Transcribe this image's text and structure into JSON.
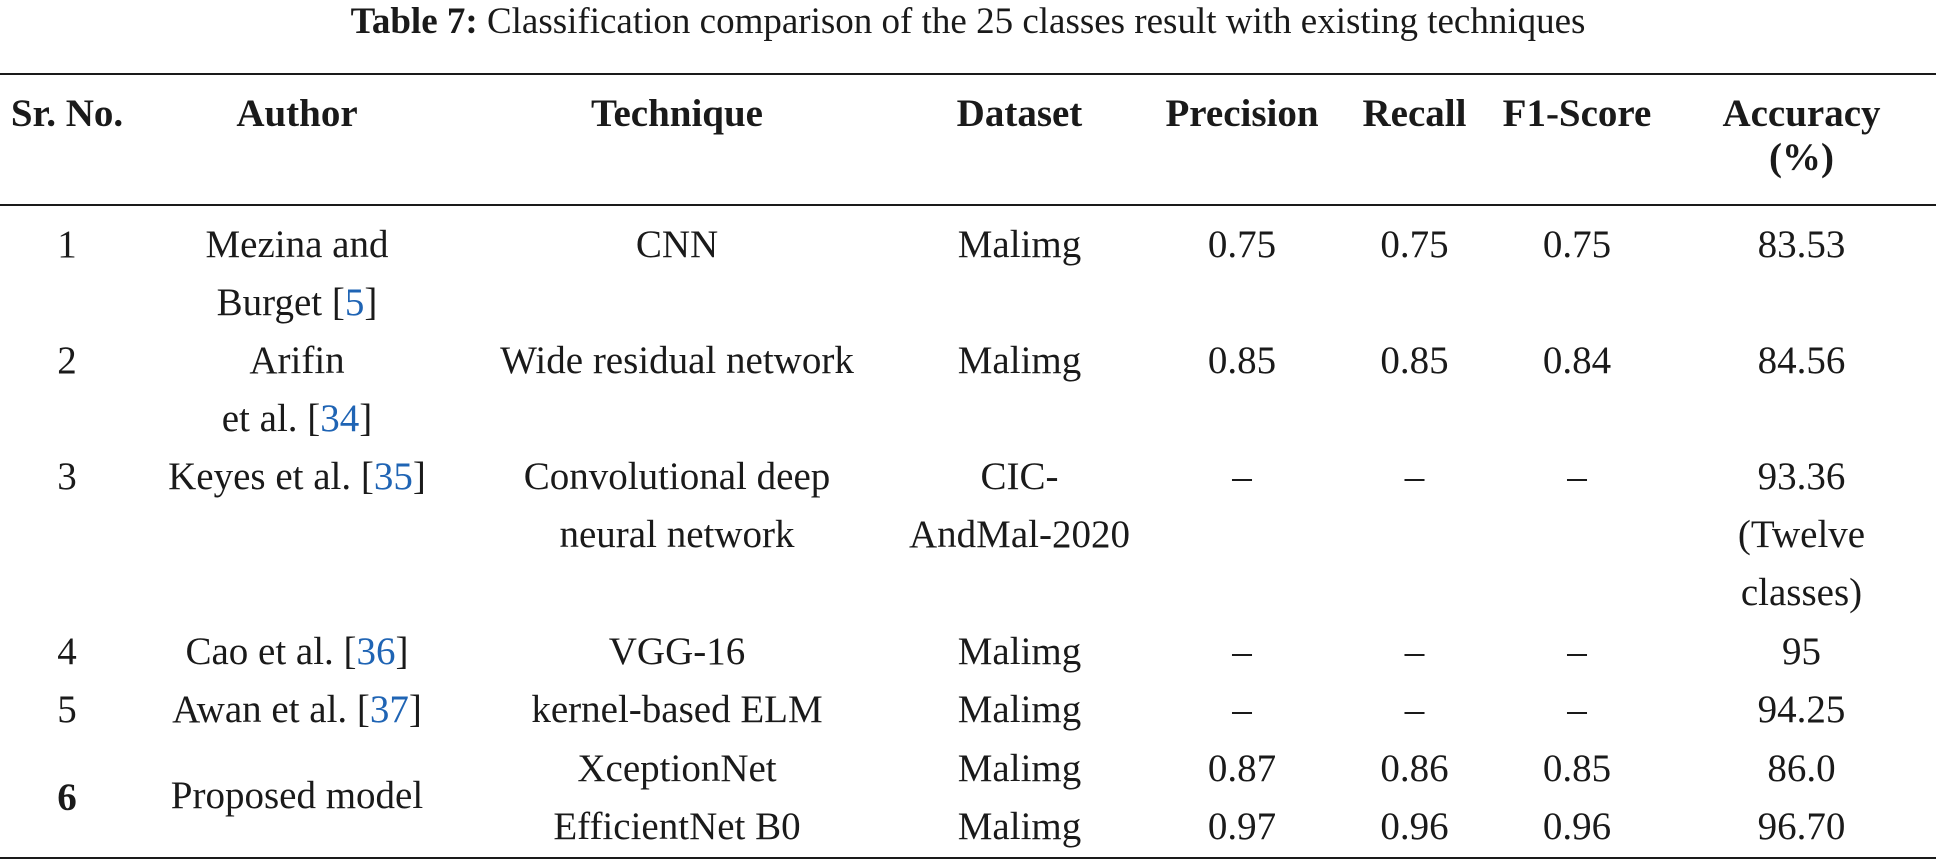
{
  "caption": {
    "label": "Table 7:",
    "text": "Classification comparison of the 25 classes result with existing techniques"
  },
  "headers": {
    "sr_no": "Sr. No.",
    "author": "Author",
    "technique": "Technique",
    "dataset": "Dataset",
    "precision": "Precision",
    "recall": "Recall",
    "f1": "F1-Score",
    "accuracy_1": "Accuracy",
    "accuracy_2": "(%)"
  },
  "rows": [
    {
      "sr": "1",
      "author_1": "Mezina and",
      "author_2_pre": "Burget [",
      "author_ref": "5",
      "author_2_post": "]",
      "technique": "CNN",
      "dataset": "Malimg",
      "precision": "0.75",
      "recall": "0.75",
      "f1": "0.75",
      "accuracy": "83.53"
    },
    {
      "sr": "2",
      "author_1": "Arifin",
      "author_2_pre": "et al. [",
      "author_ref": "34",
      "author_2_post": "]",
      "technique": "Wide residual network",
      "dataset": "Malimg",
      "precision": "0.85",
      "recall": "0.85",
      "f1": "0.84",
      "accuracy": "84.56"
    },
    {
      "sr": "3",
      "author_pre": "Keyes et al. [",
      "author_ref": "35",
      "author_post": "]",
      "technique_1": "Convolutional deep",
      "technique_2": "neural network",
      "dataset_1": "CIC-",
      "dataset_2": "AndMal-2020",
      "precision": "–",
      "recall": "–",
      "f1": "–",
      "accuracy_1": "93.36",
      "accuracy_2": "(Twelve",
      "accuracy_3": "classes)"
    },
    {
      "sr": "4",
      "author_pre": "Cao et al. [",
      "author_ref": "36",
      "author_post": "]",
      "technique": "VGG-16",
      "dataset": "Malimg",
      "precision": "–",
      "recall": "–",
      "f1": "–",
      "accuracy": "95"
    },
    {
      "sr": "5",
      "author_pre": "Awan et al. [",
      "author_ref": "37",
      "author_post": "]",
      "technique": "kernel-based ELM",
      "dataset": "Malimg",
      "precision": "–",
      "recall": "–",
      "f1": "–",
      "accuracy": "94.25"
    },
    {
      "sr": "6",
      "author": "Proposed model",
      "sub": [
        {
          "technique": "XceptionNet",
          "dataset": "Malimg",
          "precision": "0.87",
          "recall": "0.86",
          "f1": "0.85",
          "accuracy": "86.0"
        },
        {
          "technique": "EfficientNet B0",
          "dataset": "Malimg",
          "precision": "0.97",
          "recall": "0.96",
          "f1": "0.96",
          "accuracy": "96.70"
        }
      ]
    }
  ]
}
